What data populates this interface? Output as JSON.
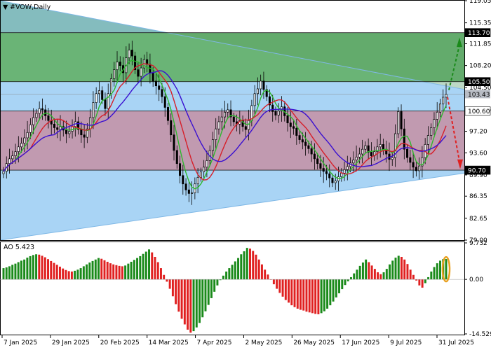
{
  "chart_data": [
    {
      "type": "candlestick",
      "title": "#VOW,Daily",
      "symbol_marker": "▼",
      "ylim": [
        79.0,
        119.05
      ],
      "y_ticks": [
        "119.05",
        "115.35",
        "111.85",
        "108.20",
        "104.50",
        "100.85",
        "97.20",
        "93.60",
        "89.90",
        "86.35",
        "82.65",
        "79.00"
      ],
      "price_levels": [
        {
          "value": 113.7,
          "label": "113.70",
          "style": "dark"
        },
        {
          "value": 105.5,
          "label": "105.50",
          "style": "dark"
        },
        {
          "value": 103.43,
          "label": "103.43",
          "style": "current"
        },
        {
          "value": 100.6,
          "label": "100.60",
          "style": "light"
        },
        {
          "value": 90.7,
          "label": "90.70",
          "style": "dark"
        }
      ],
      "zones": [
        {
          "name": "buy-target-zone",
          "from": 105.5,
          "to": 113.7,
          "color": "#5fae5f"
        },
        {
          "name": "neutral-zone",
          "from": 100.6,
          "to": 105.5,
          "color": "#a9d4f5"
        },
        {
          "name": "sell-zone",
          "from": 90.7,
          "to": 100.6,
          "color": "#c58fa3"
        }
      ],
      "x_labels": [
        "7 Jan 2025",
        "29 Jan 2025",
        "20 Feb 2025",
        "14 Mar 2025",
        "7 Apr 2025",
        "2 May 2025",
        "26 May 2025",
        "17 Jun 2025",
        "9 Jul 2025",
        "31 Jul 2025"
      ],
      "close": [
        90.5,
        91.8,
        92.6,
        93.1,
        93.8,
        94.6,
        95.2,
        96.1,
        97.0,
        98.3,
        99.5,
        100.2,
        101.0,
        100.8,
        99.8,
        99.0,
        98.4,
        97.8,
        97.5,
        98.0,
        97.4,
        96.8,
        97.2,
        98.0,
        98.8,
        97.5,
        96.6,
        96.2,
        97.6,
        99.5,
        102.0,
        103.5,
        104.0,
        102.5,
        101.0,
        103.5,
        106.0,
        107.5,
        108.8,
        108.2,
        107.0,
        109.5,
        110.8,
        109.8,
        107.5,
        106.4,
        107.8,
        109.2,
        108.4,
        107.0,
        105.6,
        104.8,
        104.2,
        103.0,
        101.2,
        99.0,
        96.6,
        94.0,
        91.8,
        89.8,
        88.4,
        87.4,
        86.8,
        86.9,
        88.4,
        89.5,
        90.4,
        91.2,
        92.3,
        94.0,
        95.8,
        97.6,
        98.8,
        99.6,
        100.4,
        100.8,
        99.6,
        98.8,
        98.4,
        99.0,
        98.0,
        97.5,
        99.0,
        101.5,
        103.5,
        104.3,
        105.6,
        104.2,
        103.0,
        101.6,
        100.5,
        99.9,
        100.6,
        101.3,
        99.8,
        98.6,
        98.0,
        97.7,
        96.5,
        95.8,
        95.4,
        94.8,
        94.3,
        93.4,
        92.6,
        91.8,
        91.0,
        90.5,
        90.1,
        89.4,
        88.6,
        88.9,
        89.6,
        90.2,
        90.8,
        91.3,
        91.9,
        92.4,
        92.9,
        93.4,
        94.2,
        94.8,
        93.7,
        93.1,
        93.8,
        94.6,
        95.0,
        94.2,
        93.4,
        92.5,
        92.8,
        96.8,
        100.5,
        97.6,
        94.2,
        92.8,
        92.0,
        91.2,
        90.6,
        91.4,
        92.8,
        95.0,
        96.5,
        97.8,
        99.2,
        100.4,
        101.8,
        102.9,
        103.4
      ],
      "ao": {
        "label": "AO",
        "last_value": "5.423",
        "ylim": [
          -14.529,
          9.732
        ],
        "y_ticks": [
          "9.732",
          "0.00",
          "-14.529"
        ],
        "values": [
          3.0,
          3.2,
          3.5,
          3.9,
          4.2,
          4.6,
          5.0,
          5.3,
          5.8,
          6.2,
          6.5,
          6.7,
          6.6,
          6.3,
          5.9,
          5.4,
          4.9,
          4.4,
          3.9,
          3.4,
          2.9,
          2.5,
          2.2,
          2.1,
          2.3,
          2.6,
          3.0,
          3.5,
          4.0,
          4.5,
          4.9,
          5.3,
          5.7,
          5.5,
          5.1,
          4.7,
          4.3,
          4.0,
          3.8,
          3.6,
          3.5,
          3.7,
          4.2,
          4.7,
          5.2,
          5.7,
          6.2,
          6.8,
          7.4,
          8.0,
          7.2,
          6.0,
          4.6,
          3.0,
          1.2,
          -0.6,
          -2.5,
          -4.5,
          -6.6,
          -8.6,
          -10.5,
          -12.0,
          -13.4,
          -14.2,
          -13.8,
          -12.8,
          -11.6,
          -10.1,
          -8.5,
          -6.8,
          -5.0,
          -3.3,
          -1.6,
          -0.2,
          1.0,
          2.1,
          3.0,
          3.9,
          4.8,
          5.7,
          6.7,
          7.5,
          8.4,
          8.2,
          7.6,
          6.6,
          5.3,
          4.0,
          2.6,
          1.3,
          0.0,
          -1.3,
          -2.5,
          -3.6,
          -4.6,
          -5.5,
          -6.2,
          -6.9,
          -7.4,
          -7.8,
          -8.1,
          -8.3,
          -8.6,
          -8.8,
          -9.0,
          -9.2,
          -9.3,
          -9.0,
          -8.5,
          -7.8,
          -6.9,
          -5.9,
          -4.8,
          -3.7,
          -2.6,
          -1.5,
          -0.5,
          0.6,
          1.6,
          2.6,
          3.6,
          4.5,
          5.3,
          4.6,
          3.7,
          2.8,
          1.9,
          1.4,
          1.9,
          2.8,
          4.0,
          5.0,
          5.8,
          6.3,
          6.0,
          5.3,
          4.1,
          2.6,
          1.2,
          -0.3,
          -1.6,
          -2.2,
          -1.0,
          0.6,
          2.1,
          3.3,
          4.3,
          5.0,
          5.4,
          5.423
        ]
      }
    }
  ],
  "colors": {
    "bull_ao": "#1a8a1a",
    "bear_ao": "#e02020",
    "ma_fast": "#2db82d",
    "ma_mid": "#d61f2a",
    "ma_slow": "#3a10d0",
    "candle": "#000000",
    "triangle_fill": "#a9d4f5",
    "buy_zone": "#5fae5f",
    "sell_zone": "#c58fa3",
    "up_arrow": "#1a8a1a",
    "down_arrow": "#e02020",
    "ao_highlight": "#e8a020"
  }
}
